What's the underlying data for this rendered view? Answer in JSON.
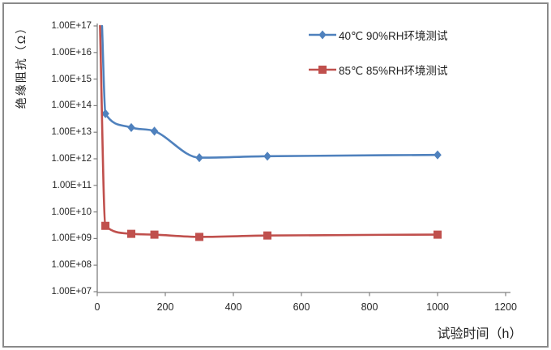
{
  "chart_data": {
    "type": "line",
    "title": "",
    "x_axis": {
      "title": "试验时间（h）",
      "min": 0,
      "max": 1200,
      "ticks": [
        0,
        200,
        400,
        600,
        800,
        1000,
        1200
      ],
      "tick_labels": [
        "0",
        "200",
        "400",
        "600",
        "800",
        "1000",
        "1200"
      ]
    },
    "y_axis": {
      "title": "绝缘阻抗（Ω）",
      "scale": "log10",
      "min": 10000000.0,
      "max": 1e+17,
      "tick_labels": [
        "1.00E+17",
        "1.00E+16",
        "1.00E+15",
        "1.00E+14",
        "1.00E+13",
        "1.00E+12",
        "1.00E+11",
        "1.00E+10",
        "1.00E+09",
        "1.00E+08",
        "1.00E+07"
      ]
    },
    "grid": false,
    "legend_position": "inside-top-right",
    "series": [
      {
        "name": "40℃ 90%RH环境测试",
        "color": "#4F81BD",
        "marker": "diamond",
        "smooth": true,
        "points": [
          {
            "x": 14,
            "y": 1e+17
          },
          {
            "x": 24,
            "y": 50000000000000.0
          },
          {
            "x": 100,
            "y": 15000000000000.0
          },
          {
            "x": 168,
            "y": 11000000000000.0
          },
          {
            "x": 300,
            "y": 1100000000000.0
          },
          {
            "x": 500,
            "y": 1250000000000.0
          },
          {
            "x": 1000,
            "y": 1400000000000.0
          }
        ]
      },
      {
        "name": "85℃ 85%RH环境测试",
        "color": "#C0504D",
        "marker": "square",
        "smooth": true,
        "points": [
          {
            "x": 8,
            "y": 1e+17
          },
          {
            "x": 24,
            "y": 3000000000.0
          },
          {
            "x": 100,
            "y": 1500000000.0
          },
          {
            "x": 168,
            "y": 1400000000.0
          },
          {
            "x": 300,
            "y": 1150000000.0
          },
          {
            "x": 500,
            "y": 1300000000.0
          },
          {
            "x": 1000,
            "y": 1400000000.0
          }
        ]
      }
    ],
    "colors": {
      "axis": "#808080",
      "frame": "#8A8A8A",
      "text": "#262626"
    }
  }
}
